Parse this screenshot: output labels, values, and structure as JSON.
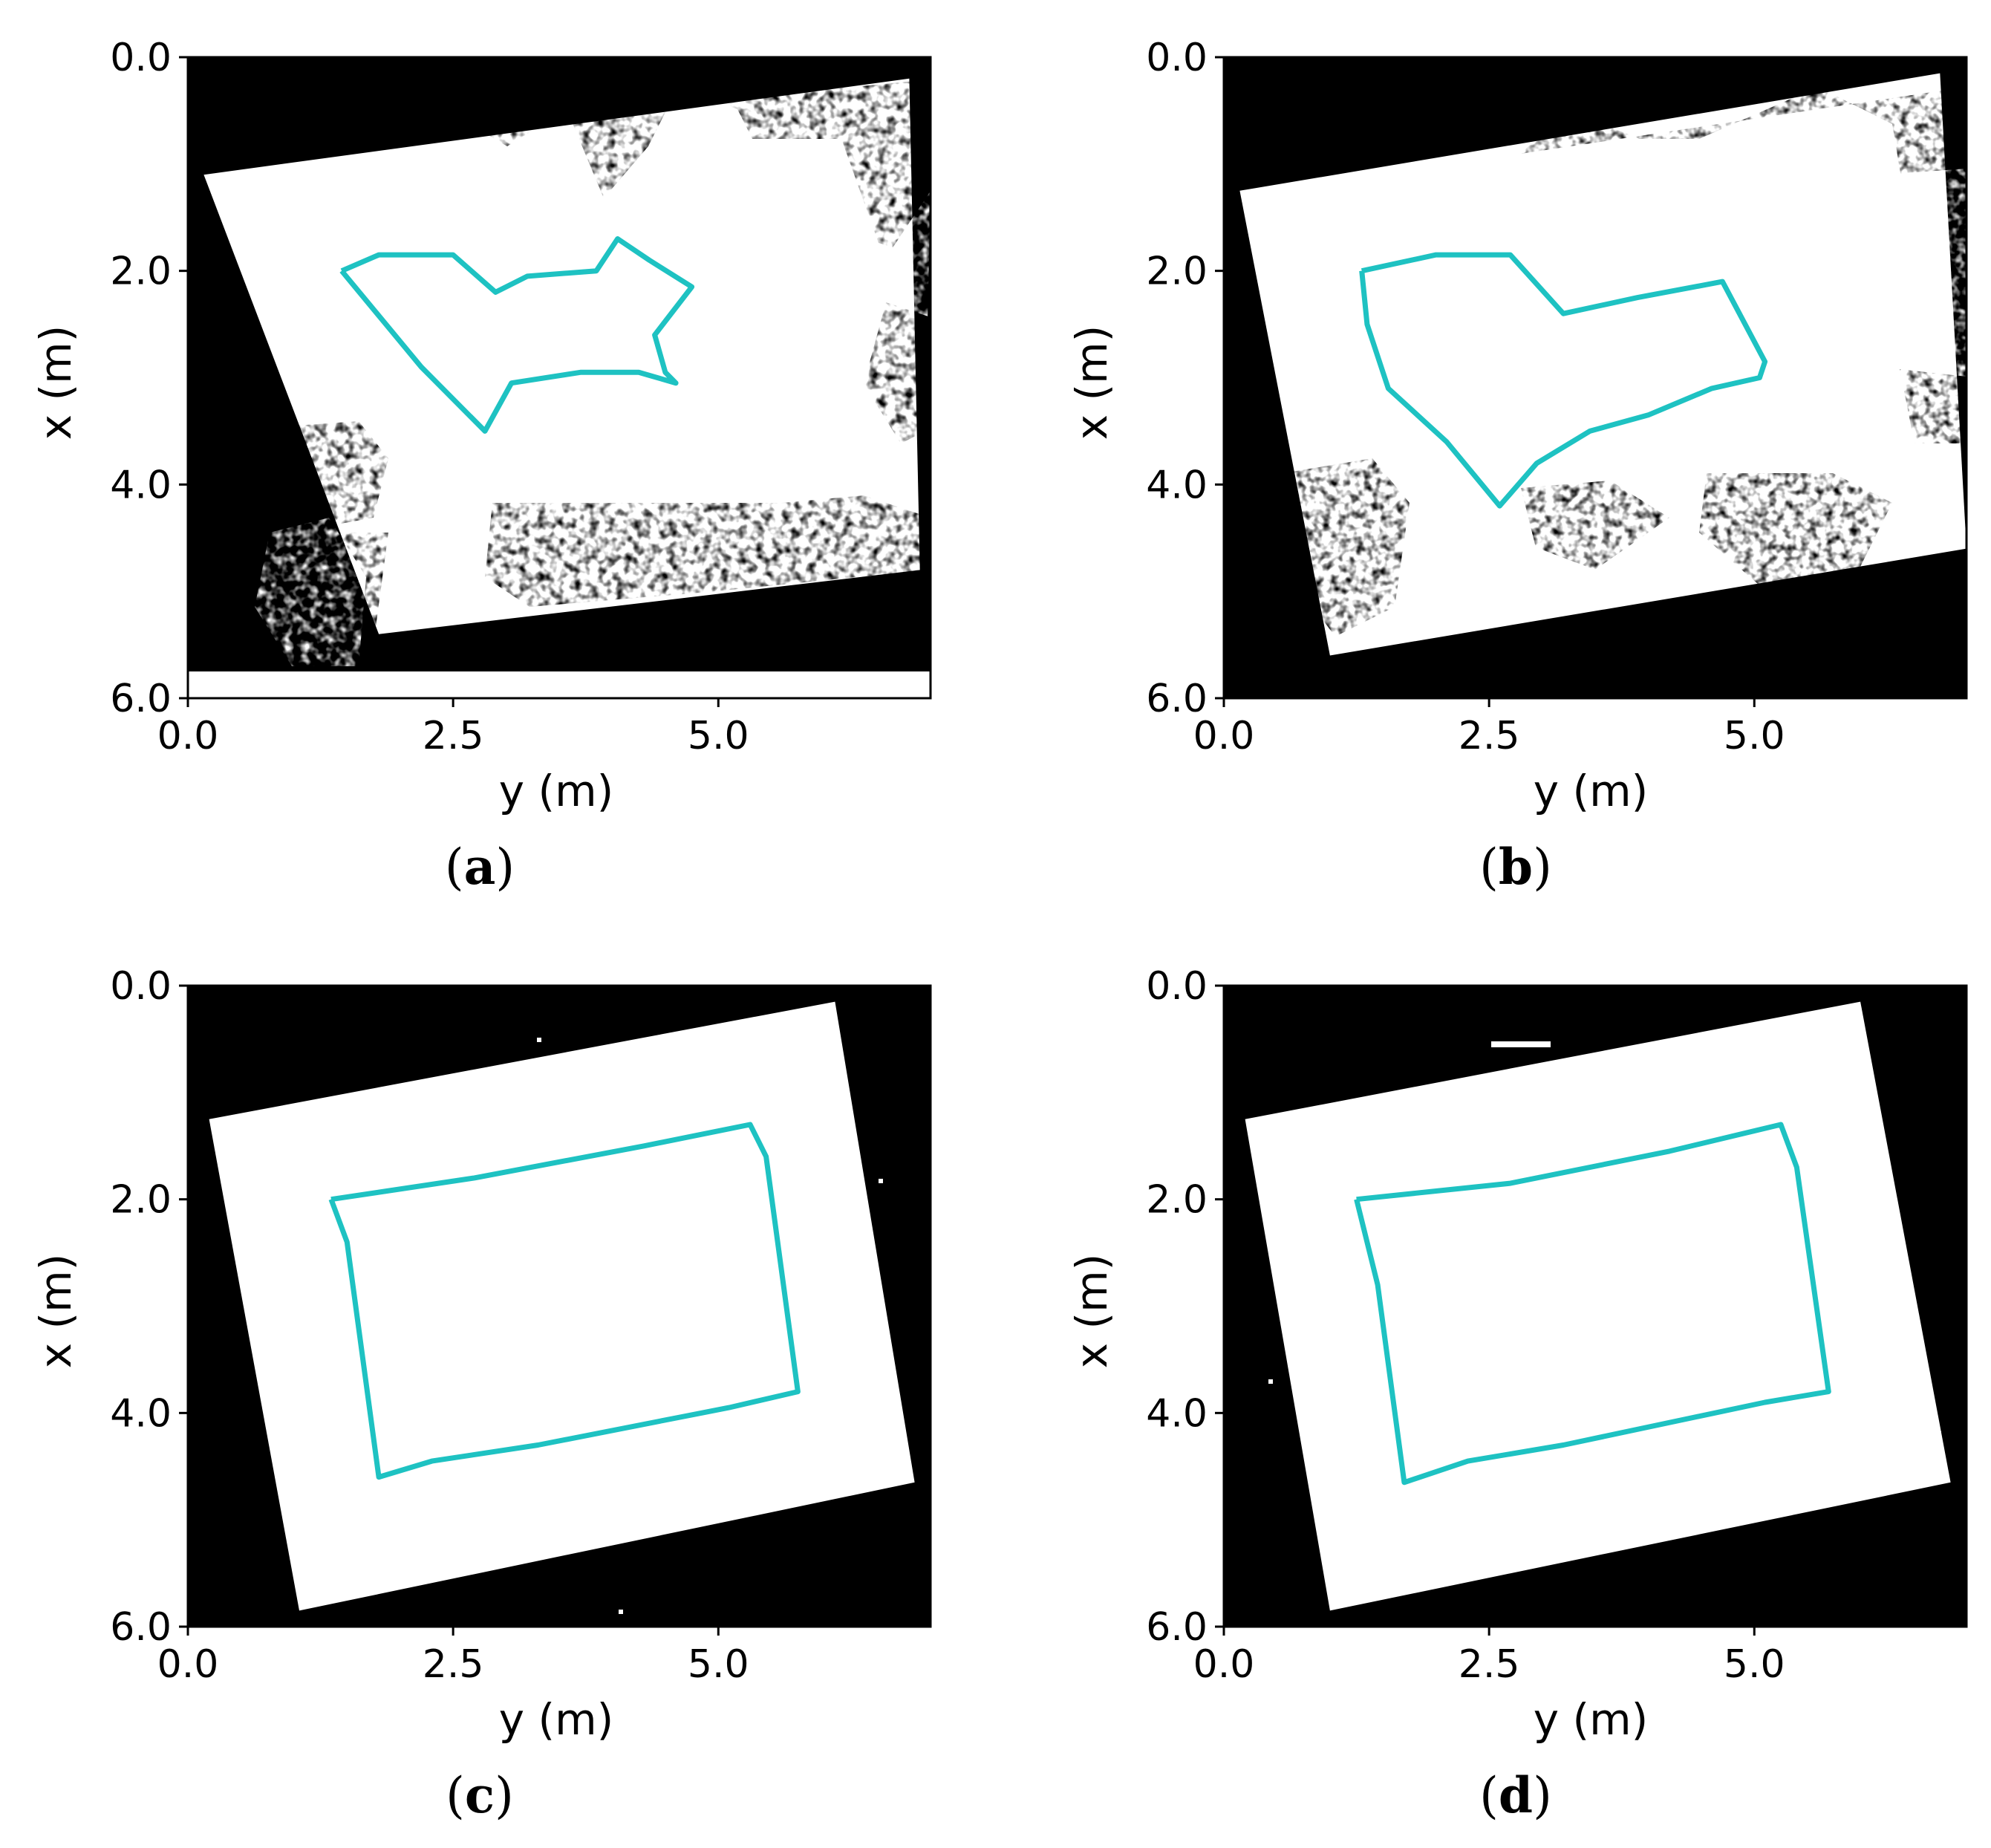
{
  "chart_data": [
    {
      "type": "heatmap",
      "caption_letter": "a",
      "xlabel": "y (m)",
      "ylabel": "x (m)",
      "xticks": [
        0.0,
        2.5,
        5.0
      ],
      "xtick_labels": [
        "0.0",
        "2.5",
        "5.0"
      ],
      "yticks": [
        0.0,
        2.0,
        4.0,
        6.0
      ],
      "ytick_labels": [
        "0.0",
        "2.0",
        "4.0",
        "6.0"
      ],
      "xlim": [
        0,
        7
      ],
      "ylim": [
        6,
        0
      ],
      "data_extent_x": 5.75,
      "free_space_quad": [
        [
          0.15,
          1.1
        ],
        [
          6.8,
          0.2
        ],
        [
          6.9,
          4.8
        ],
        [
          1.8,
          5.4
        ]
      ],
      "trajectory": {
        "color": "#1ec2c2",
        "points": [
          [
            1.45,
            2.0
          ],
          [
            1.8,
            1.85
          ],
          [
            2.5,
            1.85
          ],
          [
            2.9,
            2.2
          ],
          [
            3.2,
            2.05
          ],
          [
            3.85,
            2.0
          ],
          [
            4.05,
            1.7
          ],
          [
            4.35,
            1.9
          ],
          [
            4.75,
            2.15
          ],
          [
            4.4,
            2.6
          ],
          [
            4.5,
            2.95
          ],
          [
            4.6,
            3.05
          ],
          [
            4.25,
            2.95
          ],
          [
            3.7,
            2.95
          ],
          [
            3.05,
            3.05
          ],
          [
            2.8,
            3.5
          ],
          [
            2.2,
            2.9
          ],
          [
            1.45,
            2.0
          ]
        ]
      }
    },
    {
      "type": "heatmap",
      "caption_letter": "b",
      "xlabel": "y (m)",
      "ylabel": "x (m)",
      "xticks": [
        0.0,
        2.5,
        5.0
      ],
      "xtick_labels": [
        "0.0",
        "2.5",
        "5.0"
      ],
      "yticks": [
        0.0,
        2.0,
        4.0,
        6.0
      ],
      "ytick_labels": [
        "0.0",
        "2.0",
        "4.0",
        "6.0"
      ],
      "xlim": [
        0,
        7
      ],
      "ylim": [
        6,
        0
      ],
      "data_extent_x": 6.0,
      "free_space_quad": [
        [
          0.15,
          1.25
        ],
        [
          6.75,
          0.15
        ],
        [
          7.0,
          4.6
        ],
        [
          1.0,
          5.6
        ]
      ],
      "trajectory": {
        "color": "#1ec2c2",
        "points": [
          [
            1.3,
            2.0
          ],
          [
            2.0,
            1.85
          ],
          [
            2.7,
            1.85
          ],
          [
            3.2,
            2.4
          ],
          [
            3.9,
            2.25
          ],
          [
            4.7,
            2.1
          ],
          [
            5.1,
            2.85
          ],
          [
            5.05,
            3.0
          ],
          [
            4.6,
            3.1
          ],
          [
            4.0,
            3.35
          ],
          [
            3.45,
            3.5
          ],
          [
            2.95,
            3.8
          ],
          [
            2.6,
            4.2
          ],
          [
            2.1,
            3.6
          ],
          [
            1.55,
            3.1
          ],
          [
            1.35,
            2.5
          ],
          [
            1.3,
            2.0
          ]
        ]
      }
    },
    {
      "type": "heatmap",
      "caption_letter": "c",
      "xlabel": "y (m)",
      "ylabel": "x (m)",
      "xticks": [
        0.0,
        2.5,
        5.0
      ],
      "xtick_labels": [
        "0.0",
        "2.5",
        "5.0"
      ],
      "yticks": [
        0.0,
        2.0,
        4.0,
        6.0
      ],
      "ytick_labels": [
        "0.0",
        "2.0",
        "4.0",
        "6.0"
      ],
      "xlim": [
        0,
        7
      ],
      "ylim": [
        6,
        0
      ],
      "data_extent_x": 6.0,
      "free_space_quad": [
        [
          0.2,
          1.25
        ],
        [
          6.1,
          0.15
        ],
        [
          6.85,
          4.65
        ],
        [
          1.05,
          5.85
        ]
      ],
      "trajectory": {
        "color": "#1ec2c2",
        "points": [
          [
            1.35,
            2.0
          ],
          [
            2.7,
            1.8
          ],
          [
            4.3,
            1.5
          ],
          [
            5.3,
            1.3
          ],
          [
            5.45,
            1.6
          ],
          [
            5.75,
            3.8
          ],
          [
            5.1,
            3.95
          ],
          [
            3.3,
            4.3
          ],
          [
            2.3,
            4.45
          ],
          [
            1.8,
            4.6
          ],
          [
            1.5,
            2.4
          ],
          [
            1.35,
            2.0
          ]
        ]
      }
    },
    {
      "type": "heatmap",
      "caption_letter": "d",
      "xlabel": "y (m)",
      "ylabel": "x (m)",
      "xticks": [
        0.0,
        2.5,
        5.0
      ],
      "xtick_labels": [
        "0.0",
        "2.5",
        "5.0"
      ],
      "yticks": [
        0.0,
        2.0,
        4.0,
        6.0
      ],
      "ytick_labels": [
        "0.0",
        "2.0",
        "4.0",
        "6.0"
      ],
      "xlim": [
        0,
        7
      ],
      "ylim": [
        6,
        0
      ],
      "data_extent_x": 6.0,
      "free_space_quad": [
        [
          0.2,
          1.25
        ],
        [
          6.0,
          0.15
        ],
        [
          6.85,
          4.65
        ],
        [
          1.0,
          5.85
        ]
      ],
      "trajectory": {
        "color": "#1ec2c2",
        "points": [
          [
            1.25,
            2.0
          ],
          [
            2.7,
            1.85
          ],
          [
            4.2,
            1.55
          ],
          [
            5.25,
            1.3
          ],
          [
            5.4,
            1.7
          ],
          [
            5.7,
            3.8
          ],
          [
            5.1,
            3.9
          ],
          [
            3.2,
            4.3
          ],
          [
            2.3,
            4.45
          ],
          [
            1.7,
            4.65
          ],
          [
            1.45,
            2.8
          ],
          [
            1.25,
            2.0
          ]
        ]
      }
    }
  ]
}
